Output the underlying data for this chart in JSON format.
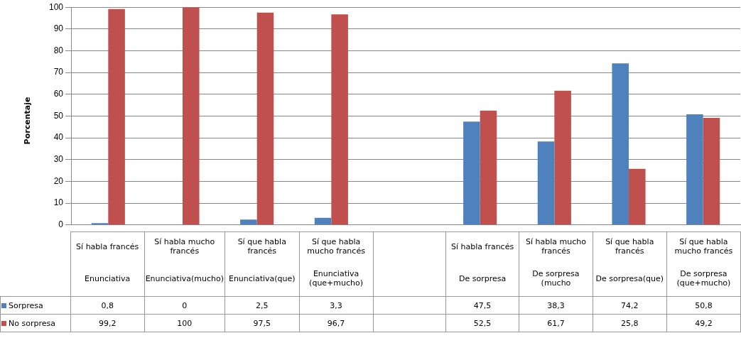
{
  "chart_data": {
    "type": "bar",
    "ylabel": "Porcentaje",
    "categories": [
      "Sí habla francés\nEnunciativa",
      "Sí habla mucho francés\nEnunciativa(mucho)",
      "Sí que habla francés\nEnunciativa(que)",
      "Sí que habla mucho francés\nEnunciativa (que+mucho)",
      null,
      "Sí habla francés\nDe sorpresa",
      "Sí habla mucho francés\nDe sorpresa (mucho",
      "Sí que habla francés\nDe sorpresa(que)",
      "Sí que habla mucho francés\nDe sorpresa (que+mucho)"
    ],
    "series": [
      {
        "name": "Sorpresa",
        "color": "#4f81bd",
        "values": [
          0.8,
          0,
          2.5,
          3.3,
          null,
          47.5,
          38.3,
          74.2,
          50.8
        ],
        "value_labels": [
          "0,8",
          "0",
          "2,5",
          "3,3",
          null,
          "47,5",
          "38,3",
          "74,2",
          "50,8"
        ]
      },
      {
        "name": "No sorpresa",
        "color": "#c0504d",
        "values": [
          99.2,
          100,
          97.5,
          96.7,
          null,
          52.5,
          61.7,
          25.8,
          49.2
        ],
        "value_labels": [
          "99,2",
          "100",
          "97,5",
          "96,7",
          null,
          "52,5",
          "61,7",
          "25,8",
          "49,2"
        ]
      }
    ],
    "ylim": [
      0,
      100
    ],
    "yticks": [
      0,
      10,
      20,
      30,
      40,
      50,
      60,
      70,
      80,
      90,
      100
    ],
    "grid": "y",
    "legend": "bottom",
    "data_labels": true
  }
}
